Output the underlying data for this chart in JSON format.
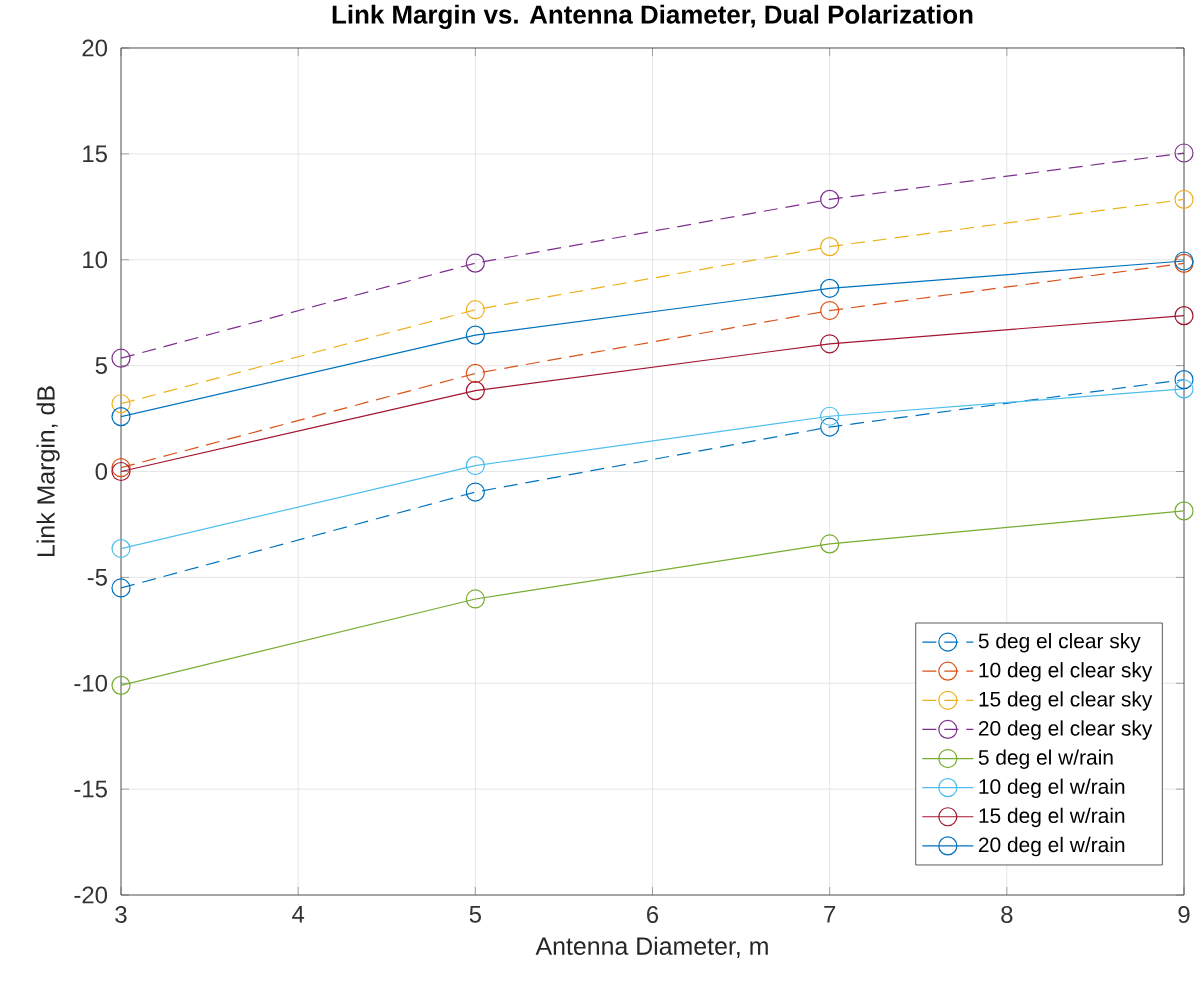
{
  "chart_data": {
    "type": "line",
    "title": "Link Margin vs. Antenna Diameter, Dual Polarization",
    "xlabel": "Antenna Diameter, m",
    "ylabel": "Link Margin, dB",
    "x": [
      3,
      5,
      7,
      9
    ],
    "xlim": [
      3,
      9
    ],
    "ylim": [
      -20,
      20
    ],
    "xticks": [
      3,
      4,
      5,
      6,
      7,
      8,
      9
    ],
    "yticks": [
      -20,
      -15,
      -10,
      -5,
      0,
      5,
      10,
      15,
      20
    ],
    "grid": true,
    "legend": "bottom right",
    "marker": "circle",
    "series": [
      {
        "name": "5 deg el clear sky",
        "color": "#0072bd",
        "line_style": "dashed",
        "values": [
          -5.5,
          -0.97,
          2.1,
          4.34
        ]
      },
      {
        "name": "10 deg el clear sky",
        "color": "#d95319",
        "line_style": "dashed",
        "values": [
          0.18,
          4.63,
          7.6,
          9.83
        ]
      },
      {
        "name": "15 deg el clear sky",
        "color": "#edb120",
        "line_style": "dashed",
        "values": [
          3.2,
          7.64,
          10.62,
          12.85
        ]
      },
      {
        "name": "20 deg el clear sky",
        "color": "#7e2f8e",
        "line_style": "dashed",
        "values": [
          5.35,
          9.84,
          12.85,
          15.04
        ]
      },
      {
        "name": "5 deg el w/rain",
        "color": "#77ac30",
        "line_style": "solid",
        "values": [
          -10.1,
          -6.02,
          -3.42,
          -1.86
        ]
      },
      {
        "name": "10 deg el w/rain",
        "color": "#4dbeee",
        "line_style": "solid",
        "values": [
          -3.64,
          0.28,
          2.61,
          3.9
        ]
      },
      {
        "name": "15 deg el w/rain",
        "color": "#a2142f",
        "line_style": "solid",
        "values": [
          0.0,
          3.82,
          6.03,
          7.36
        ]
      },
      {
        "name": "20 deg el w/rain",
        "color": "#0072bd",
        "line_style": "solid",
        "values": [
          2.59,
          6.44,
          8.65,
          9.94
        ]
      }
    ]
  }
}
